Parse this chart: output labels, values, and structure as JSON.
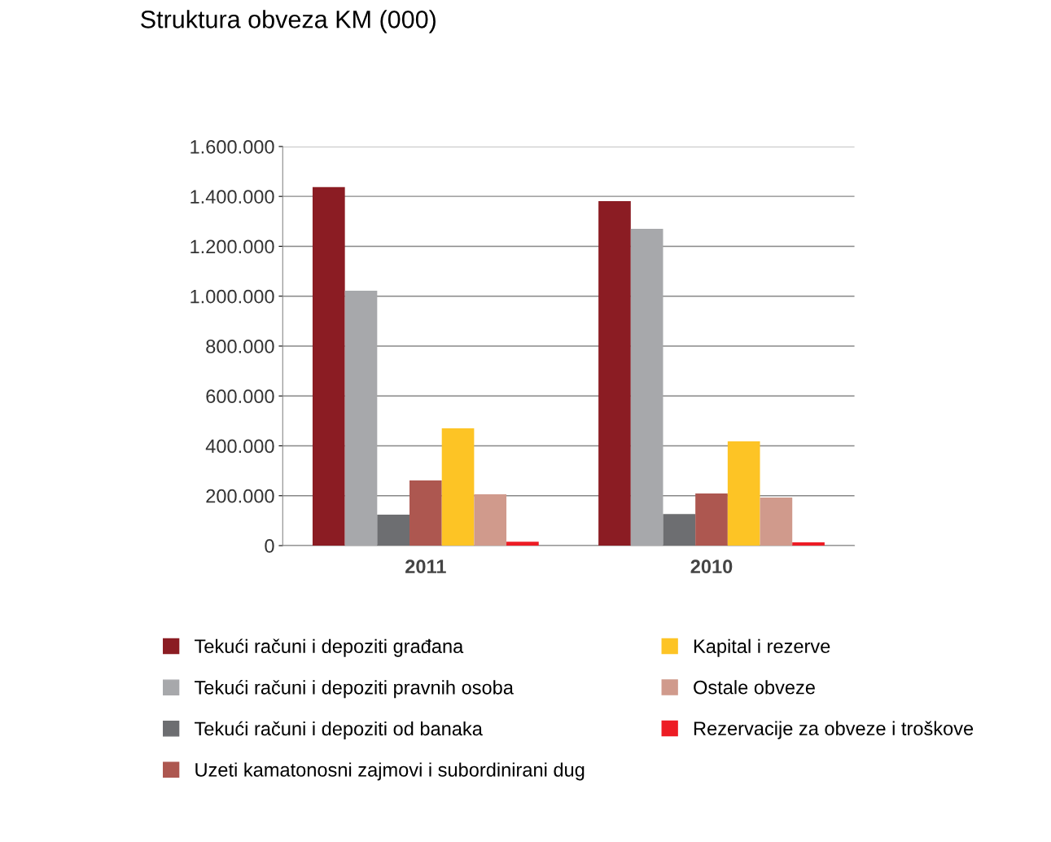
{
  "chart_data": {
    "type": "bar",
    "title": "Struktura obveza KM (000)",
    "categories": [
      "2011",
      "2010"
    ],
    "series": [
      {
        "name": "Tekući računi i depoziti građana",
        "color": "#8b1c23",
        "values": [
          1437000,
          1381000
        ]
      },
      {
        "name": "Tekući računi i depoziti pravnih osoba",
        "color": "#a7a8ab",
        "values": [
          1022000,
          1270000
        ]
      },
      {
        "name": "Tekući računi i depoziti od banaka",
        "color": "#6d6e71",
        "values": [
          124000,
          127000
        ]
      },
      {
        "name": "Uzeti kamatonosni zajmovi i subordinirani dug",
        "color": "#ad5750",
        "values": [
          261000,
          209000
        ]
      },
      {
        "name": "Kapital i rezerve",
        "color": "#fdc425",
        "values": [
          470000,
          418000
        ]
      },
      {
        "name": "Ostale obveze",
        "color": "#d09a8c",
        "values": [
          206000,
          193000
        ]
      },
      {
        "name": "Rezervacije za obveze i troškove",
        "color": "#ed1c24",
        "values": [
          16000,
          13000
        ]
      }
    ],
    "ylim": [
      0,
      1600000
    ],
    "yticks": [
      0,
      {
        "value": 200000,
        "label": "200.000"
      },
      {
        "value": 400000,
        "label": "400.000"
      },
      {
        "value": 600000,
        "label": "600.000"
      },
      {
        "value": 800000,
        "label": "800.000"
      },
      {
        "value": 1000000,
        "label": "1.000.000"
      },
      {
        "value": 1200000,
        "label": "1.200.000"
      },
      {
        "value": 1400000,
        "label": "1.400.000"
      },
      {
        "value": 1600000,
        "label": "1.600.000"
      }
    ],
    "grid": "y",
    "legend": "bottom"
  }
}
